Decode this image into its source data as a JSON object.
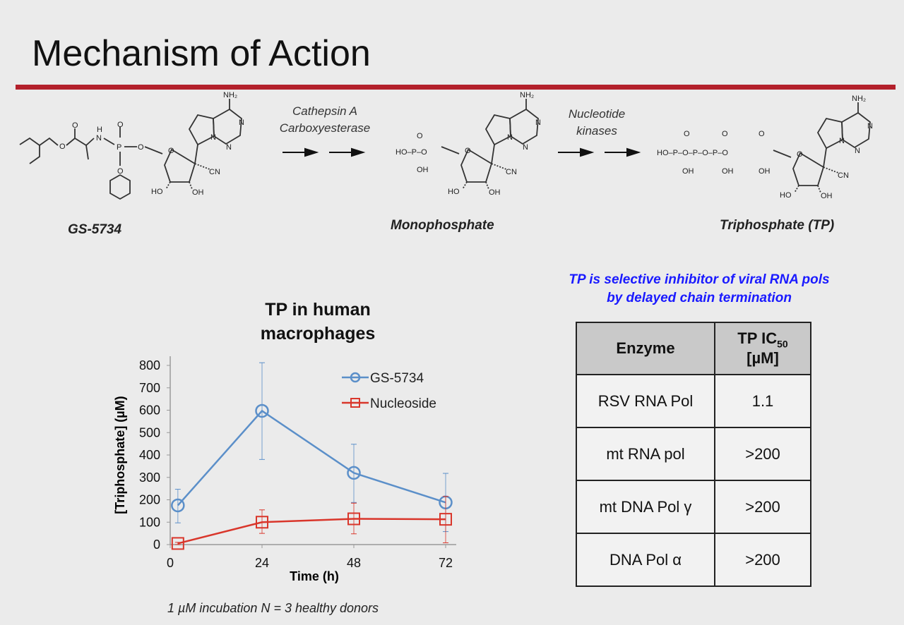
{
  "slide": {
    "title": "Mechanism of Action",
    "accent_color": "#b3202b"
  },
  "pathway": {
    "compounds": [
      "GS-5734",
      "Monophosphate",
      "Triphosphate (TP)"
    ],
    "step1_enzymes": [
      "Cathepsin A",
      "Carboxyesterase"
    ],
    "step2_enzymes": [
      "Nucleotide",
      "kinases"
    ]
  },
  "statement": [
    "TP is selective inhibitor of viral RNA pols",
    "by delayed chain termination"
  ],
  "statement_color": "#1a1aff",
  "table": {
    "headers": [
      "Enzyme",
      "TP IC",
      "50",
      "[µM]"
    ],
    "rows": [
      [
        "RSV RNA Pol",
        "1.1"
      ],
      [
        "mt RNA pol",
        ">200"
      ],
      [
        "mt DNA Pol γ",
        ">200"
      ],
      [
        "DNA Pol α",
        ">200"
      ]
    ]
  },
  "footnote": "1 µM incubation N = 3 healthy donors",
  "chart_data": {
    "type": "line",
    "title": "TP in human macrophages",
    "xlabel": "Time (h)",
    "ylabel": "[Triphosphate] (µM)",
    "xlim": [
      0,
      72
    ],
    "ylim": [
      0,
      800
    ],
    "xticks": [
      0,
      24,
      48,
      72
    ],
    "yticks": [
      0,
      100,
      200,
      300,
      400,
      500,
      600,
      700,
      800
    ],
    "grid": false,
    "legend": "top-right",
    "series": [
      {
        "name": "GS-5734",
        "color": "#5b8fc9",
        "marker": "circle",
        "x": [
          2,
          24,
          48,
          72
        ],
        "y": [
          175,
          597,
          320,
          188
        ],
        "err_low": [
          97,
          380,
          188,
          58
        ],
        "err_high": [
          247,
          812,
          448,
          318
        ]
      },
      {
        "name": "Nucleoside",
        "color": "#d9362b",
        "marker": "square",
        "x": [
          2,
          24,
          48,
          72
        ],
        "y": [
          5,
          100,
          115,
          113
        ],
        "err_low": [
          0,
          50,
          48,
          8
        ],
        "err_high": [
          10,
          155,
          185,
          215
        ]
      }
    ]
  }
}
